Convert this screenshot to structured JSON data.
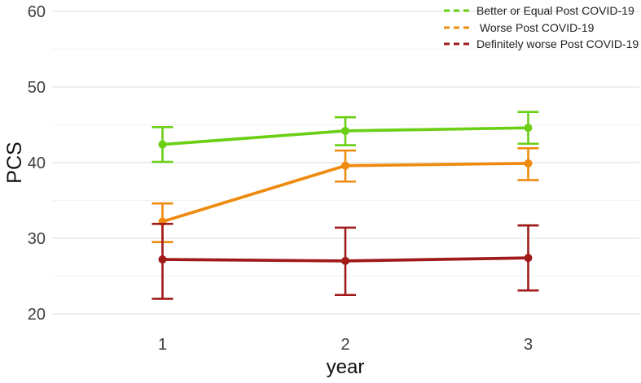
{
  "chart_data": {
    "type": "line",
    "title": "",
    "xlabel": "year",
    "ylabel": "PCS",
    "x": [
      1,
      2,
      3
    ],
    "x_tick_labels": [
      "1",
      "2",
      "3"
    ],
    "y_ticks": [
      60,
      50,
      40,
      30,
      20
    ],
    "y_minor_gridlines": [
      55,
      45,
      35,
      25
    ],
    "ylim": [
      20,
      60
    ],
    "grid": "on",
    "legend_position": "top-right",
    "error_bars": "95% CI",
    "series": [
      {
        "name": "Better or Equal Post COVID-19",
        "color": "#6bcf16",
        "linestyle": "solid",
        "values": [
          42.4,
          44.2,
          44.6
        ],
        "ci_lower": [
          40.1,
          42.3,
          42.5
        ],
        "ci_upper": [
          44.7,
          46.0,
          46.7
        ]
      },
      {
        "name": " Worse Post COVID-19",
        "color": "#ee8b0e",
        "linestyle": "solid",
        "values": [
          32.2,
          39.6,
          39.9
        ],
        "ci_lower": [
          29.5,
          37.5,
          37.7
        ],
        "ci_upper": [
          34.6,
          41.6,
          41.9
        ]
      },
      {
        "name": "Definitely worse Post COVID-19",
        "color": "#a01a1a",
        "linestyle": "solid",
        "values": [
          27.2,
          27.0,
          27.4
        ],
        "ci_lower": [
          22.0,
          22.5,
          23.1
        ],
        "ci_upper": [
          31.9,
          31.4,
          31.7
        ]
      }
    ],
    "colors": {
      "grid_major": "#e7e7e7",
      "grid_minor": "#f3f3f3",
      "tick_text": "#3f3f3f",
      "background": "#ffffff"
    }
  }
}
